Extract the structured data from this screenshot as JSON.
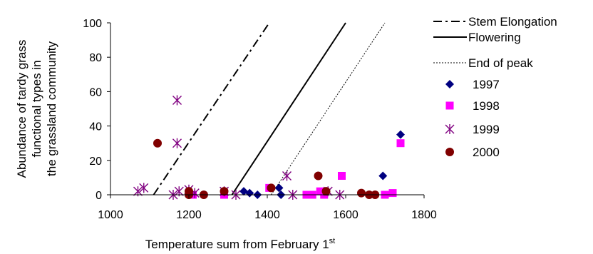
{
  "chart_data": {
    "type": "scatter",
    "xlabel": "Temperature sum from February 1",
    "xlabel_sup": "st",
    "ylabel_lines": [
      "Abundance of tardy grass",
      "functional types in",
      "the grassland community"
    ],
    "xlim": [
      1000,
      1800
    ],
    "ylim": [
      0,
      100
    ],
    "x_ticks": [
      "1000",
      "1200",
      "1400",
      "1600",
      "1800"
    ],
    "y_ticks": [
      "0",
      "20",
      "40",
      "60",
      "80",
      "100"
    ],
    "legend_position": "right",
    "lines": [
      {
        "name": "Stem Elongation",
        "style": "dashdot",
        "color": "#000000",
        "points": [
          [
            1110,
            0
          ],
          [
            1405,
            100
          ]
        ]
      },
      {
        "name": "Flowering",
        "style": "solid",
        "color": "#000000",
        "points": [
          [
            1310,
            0
          ],
          [
            1600,
            100
          ]
        ]
      },
      {
        "name": "End of peak",
        "style": "dotted",
        "color": "#000000",
        "points": [
          [
            1410,
            0
          ],
          [
            1700,
            100
          ]
        ]
      }
    ],
    "series": [
      {
        "name": "1997",
        "marker": "diamond",
        "color": "#000080",
        "points": [
          [
            1340,
            2
          ],
          [
            1355,
            1
          ],
          [
            1375,
            0
          ],
          [
            1430,
            4
          ],
          [
            1435,
            0
          ],
          [
            1695,
            11
          ],
          [
            1740,
            35
          ]
        ]
      },
      {
        "name": "1998",
        "marker": "square",
        "color": "#ff00ff",
        "points": [
          [
            1210,
            0
          ],
          [
            1290,
            0
          ],
          [
            1405,
            4
          ],
          [
            1500,
            0
          ],
          [
            1515,
            0
          ],
          [
            1535,
            2
          ],
          [
            1545,
            0
          ],
          [
            1590,
            11
          ],
          [
            1700,
            0
          ],
          [
            1720,
            1
          ],
          [
            1740,
            30
          ]
        ]
      },
      {
        "name": "1999",
        "marker": "asterisk",
        "color": "#800080",
        "points": [
          [
            1070,
            2
          ],
          [
            1085,
            4
          ],
          [
            1160,
            0
          ],
          [
            1170,
            55
          ],
          [
            1170,
            30
          ],
          [
            1175,
            2
          ],
          [
            1200,
            3
          ],
          [
            1215,
            1
          ],
          [
            1290,
            2
          ],
          [
            1320,
            0
          ],
          [
            1450,
            11
          ],
          [
            1465,
            0
          ],
          [
            1555,
            2
          ],
          [
            1585,
            0
          ]
        ]
      },
      {
        "name": "2000",
        "marker": "circle",
        "color": "#800000",
        "points": [
          [
            1120,
            30
          ],
          [
            1200,
            2
          ],
          [
            1200,
            0
          ],
          [
            1238,
            0
          ],
          [
            1290,
            2
          ],
          [
            1410,
            4
          ],
          [
            1530,
            11
          ],
          [
            1550,
            2
          ],
          [
            1640,
            1
          ],
          [
            1660,
            0
          ],
          [
            1675,
            0
          ]
        ]
      }
    ]
  }
}
